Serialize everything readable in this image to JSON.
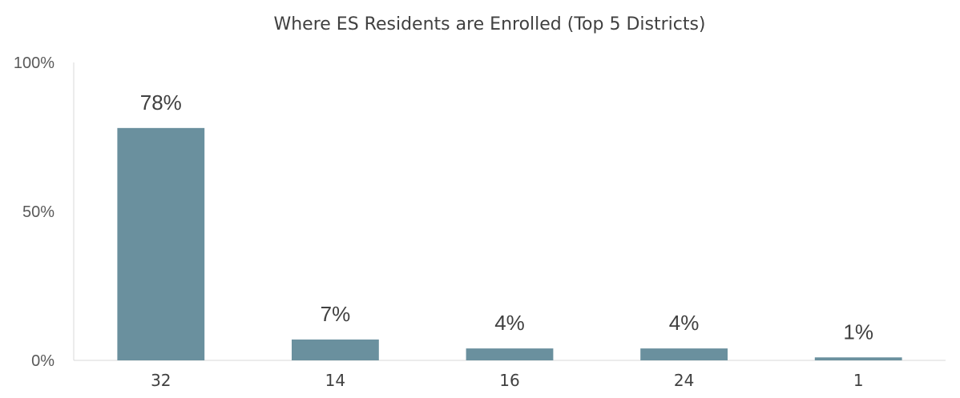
{
  "chart_data": {
    "type": "bar",
    "title": "Where ES Residents are Enrolled (Top 5 Districts)",
    "categories": [
      "32",
      "14",
      "16",
      "24",
      "1"
    ],
    "values": [
      78,
      7,
      4,
      4,
      1
    ],
    "data_labels": [
      "78%",
      "7%",
      "4%",
      "4%",
      "1%"
    ],
    "y_ticks": [
      {
        "value": 0,
        "label": "0%"
      },
      {
        "value": 50,
        "label": "50%"
      },
      {
        "value": 100,
        "label": "100%"
      }
    ],
    "ylim": [
      0,
      100
    ],
    "xlabel": "",
    "ylabel": "",
    "grid": false,
    "legend": "none",
    "bar_color": "#6a909e"
  }
}
